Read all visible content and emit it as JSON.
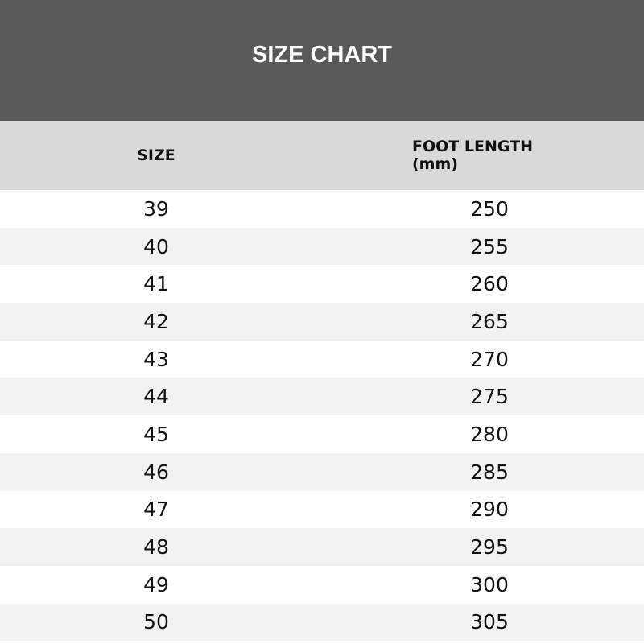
{
  "title": "SIZE CHART",
  "columns": [
    "SIZE",
    "FOOT LENGTH (mm)"
  ],
  "rows": [
    [
      "39",
      "250"
    ],
    [
      "40",
      "255"
    ],
    [
      "41",
      "260"
    ],
    [
      "42",
      "265"
    ],
    [
      "43",
      "270"
    ],
    [
      "44",
      "275"
    ],
    [
      "45",
      "280"
    ],
    [
      "46",
      "285"
    ],
    [
      "47",
      "290"
    ],
    [
      "48",
      "295"
    ],
    [
      "49",
      "300"
    ],
    [
      "50",
      "305"
    ]
  ],
  "colors": {
    "title_bg": "#595959",
    "header_bg": "#d9d9d9",
    "stripe": "#f2f2f2"
  }
}
